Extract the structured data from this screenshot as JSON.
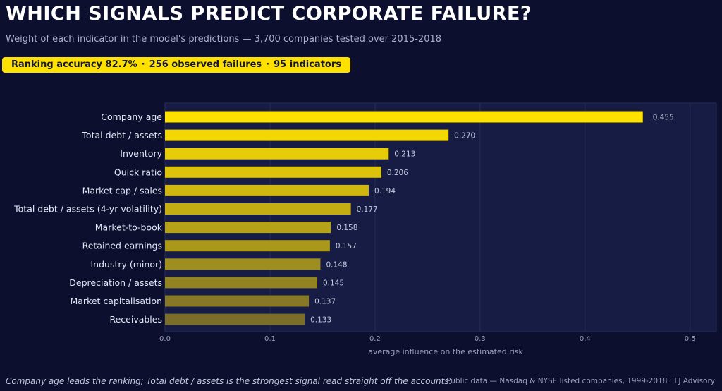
{
  "header": {
    "title": "WHICH SIGNALS PREDICT CORPORATE FAILURE?",
    "subtitle": "Weight of each indicator in the model's predictions — 3,700 companies tested over 2015-2018"
  },
  "badge": {
    "accuracy": "Ranking accuracy 82.7%",
    "failures": "256 observed failures",
    "indicators": "95 indicators",
    "separator": "·"
  },
  "footer": {
    "note": "Company age leads the ranking; Total debt / assets is the strongest signal read straight off the accounts.",
    "source": "Public data — Nasdaq & NYSE listed companies, 1999-2018  ·  LJ Advisory"
  },
  "colors": {
    "background": "#0c0f2e",
    "plot_background": "#171c45",
    "bar_top": "#ffe100",
    "bar_bottom": "#7a6e2a",
    "badge": "#ffe100"
  },
  "chart_data": {
    "type": "bar",
    "orientation": "horizontal",
    "categories": [
      "Company age",
      "Total debt / assets",
      "Inventory",
      "Quick ratio",
      "Market cap / sales",
      "Total debt / assets (4-yr volatility)",
      "Market-to-book",
      "Retained earnings",
      "Industry (minor)",
      "Depreciation / assets",
      "Market capitalisation",
      "Receivables"
    ],
    "values": [
      0.455,
      0.27,
      0.213,
      0.206,
      0.194,
      0.177,
      0.158,
      0.157,
      0.148,
      0.145,
      0.137,
      0.133
    ],
    "value_labels": [
      "0.455",
      "0.270",
      "0.213",
      "0.206",
      "0.194",
      "0.177",
      "0.158",
      "0.157",
      "0.148",
      "0.145",
      "0.137",
      "0.133"
    ],
    "xticks": [
      0.0,
      0.1,
      0.2,
      0.3,
      0.4,
      0.5
    ],
    "xtick_labels": [
      "0.0",
      "0.1",
      "0.2",
      "0.3",
      "0.4",
      "0.5"
    ],
    "xlim": [
      0,
      0.525
    ],
    "xlabel": "average influence on the estimated risk",
    "grid": true
  }
}
